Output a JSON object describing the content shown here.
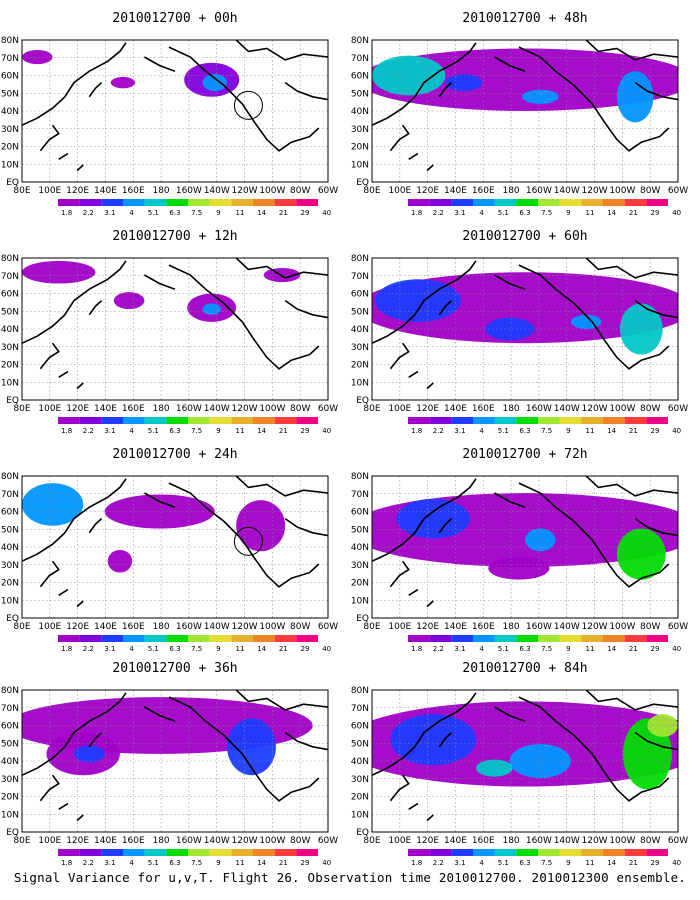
{
  "caption": "Signal Variance for u,v,T. Flight 26. Observation time 2010012700. 2010012300 ensemble.",
  "colorbar": {
    "labels": [
      "1.8",
      "2.2",
      "3.1",
      "4",
      "5.1",
      "6.3",
      "7.5",
      "9",
      "11",
      "14",
      "21",
      "29",
      "40"
    ],
    "colors": [
      "#a000c8",
      "#8200dc",
      "#1e3cff",
      "#0096ff",
      "#00c8c8",
      "#00dc00",
      "#a0e632",
      "#e6dc32",
      "#e6af2d",
      "#f08228",
      "#fa3c3c",
      "#f00082"
    ]
  },
  "axes": {
    "x_ticks": [
      "80E",
      "100E",
      "120E",
      "140E",
      "160E",
      "180",
      "160W",
      "140W",
      "120W",
      "100W",
      "80W",
      "60W"
    ],
    "y_ticks": [
      "EQ",
      "10N",
      "20N",
      "30N",
      "40N",
      "50N",
      "60N",
      "70N",
      "80N"
    ],
    "lon_range": [
      "80E",
      "60W"
    ],
    "lat_range": [
      "EQ",
      "80N"
    ],
    "grid": true
  },
  "chart_data": [
    {
      "type": "heatmap",
      "title": "2010012700 + 00h",
      "lead_hours": 0,
      "variable": "Signal Variance for u,v,T",
      "level_max_category": "5.1"
    },
    {
      "type": "heatmap",
      "title": "2010012700 + 48h",
      "lead_hours": 48,
      "variable": "Signal Variance for u,v,T",
      "level_max_category": "5.1"
    },
    {
      "type": "heatmap",
      "title": "2010012700 + 12h",
      "lead_hours": 12,
      "variable": "Signal Variance for u,v,T",
      "level_max_category": "4"
    },
    {
      "type": "heatmap",
      "title": "2010012700 + 60h",
      "lead_hours": 60,
      "variable": "Signal Variance for u,v,T",
      "level_max_category": "6.3"
    },
    {
      "type": "heatmap",
      "title": "2010012700 + 24h",
      "lead_hours": 24,
      "variable": "Signal Variance for u,v,T",
      "level_max_category": "4"
    },
    {
      "type": "heatmap",
      "title": "2010012700 + 72h",
      "lead_hours": 72,
      "variable": "Signal Variance for u,v,T",
      "level_max_category": "7.5"
    },
    {
      "type": "heatmap",
      "title": "2010012700 + 36h",
      "lead_hours": 36,
      "variable": "Signal Variance for u,v,T",
      "level_max_category": "5.1"
    },
    {
      "type": "heatmap",
      "title": "2010012700 + 84h",
      "lead_hours": 84,
      "variable": "Signal Variance for u,v,T",
      "level_max_category": "9"
    }
  ]
}
